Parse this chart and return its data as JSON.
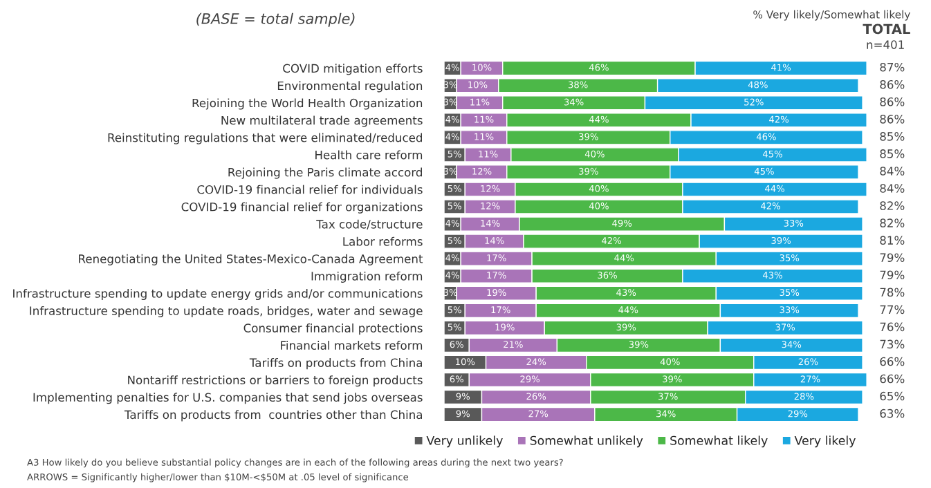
{
  "chart_data": {
    "type": "bar",
    "orientation": "horizontal",
    "stacked": true,
    "legend": "bottom right",
    "grid": false,
    "tick_labels": "y",
    "categories": [
      "COVID mitigation efforts",
      "Environmental regulation",
      "Rejoining the World Health Organization",
      "New multilateral trade agreements",
      "Reinstituting regulations that were eliminated/reduced",
      "Health care reform",
      "Rejoining the Paris climate accord",
      "COVID-19 financial relief for individuals",
      "COVID-19 financial relief for organizations",
      "Tax code/structure",
      "Labor reforms",
      "Renegotiating the United States-Mexico-Canada Agreement",
      "Immigration reform",
      "Infrastructure spending to update energy grids and/or communications",
      "Infrastructure spending to update roads, bridges, water and sewage",
      "Consumer financial protections",
      "Financial markets reform",
      "Tariffs on products from China",
      "Nontariff restrictions or barriers to foreign products",
      "Implementing penalties for U.S. companies that send jobs overseas",
      "Tariffs on products from  countries other than China"
    ],
    "series": [
      {
        "name": "Very unlikely",
        "color": "#595959",
        "values": [
          4,
          3,
          3,
          4,
          4,
          5,
          3,
          5,
          5,
          4,
          5,
          4,
          4,
          3,
          5,
          5,
          6,
          10,
          6,
          9,
          9
        ],
        "value_labels": [
          "4%",
          "3%",
          "3%",
          "4%",
          "4%",
          "5%",
          "3%",
          "5%",
          "5%",
          "4%",
          "5%",
          "4%",
          "4%",
          "3%",
          "5%",
          "5%",
          "6%",
          "10%",
          "6%",
          "9%",
          "9%"
        ]
      },
      {
        "name": "Somewhat unlikely",
        "color": "#a974b8",
        "values": [
          10,
          10,
          11,
          11,
          11,
          11,
          12,
          12,
          12,
          14,
          14,
          17,
          17,
          19,
          17,
          19,
          21,
          24,
          29,
          26,
          27
        ],
        "value_labels": [
          "10%",
          "10%",
          "11%",
          "11%",
          "11%",
          "11%",
          "12%",
          "12%",
          "12%",
          "14%",
          "14%",
          "17%",
          "17%",
          "19%",
          "17%",
          "19%",
          "21%",
          "24%",
          "29%",
          "26%",
          "27%"
        ]
      },
      {
        "name": "Somewhat likely",
        "color": "#4cb848",
        "values": [
          46,
          38,
          34,
          44,
          39,
          40,
          39,
          40,
          40,
          49,
          42,
          44,
          36,
          43,
          44,
          39,
          39,
          40,
          39,
          37,
          34
        ],
        "value_labels": [
          "46%",
          "38%",
          "34%",
          "44%",
          "39%",
          "40%",
          "39%",
          "40%",
          "40%",
          "49%",
          "42%",
          "44%",
          "36%",
          "43%",
          "44%",
          "39%",
          "39%",
          "40%",
          "39%",
          "37%",
          "34%"
        ]
      },
      {
        "name": "Very likely",
        "color": "#1ba8e0",
        "values": [
          41,
          48,
          52,
          42,
          46,
          45,
          45,
          44,
          42,
          33,
          39,
          35,
          43,
          35,
          33,
          37,
          34,
          26,
          27,
          28,
          29
        ],
        "value_labels": [
          "41%",
          "48%",
          "52%",
          "42%",
          "46%",
          "45%",
          "45%",
          "44%",
          "42%",
          "33%",
          "39%",
          "35%",
          "43%",
          "35%",
          "33%",
          "37%",
          "34%",
          "26%",
          "27%",
          "28%",
          "29%"
        ]
      }
    ],
    "annotations": [
      "(BASE = total sample)",
      "% Very likely/Somewhat likely",
      "TOTAL",
      "n=401",
      "87%",
      "86%",
      "86%",
      "86%",
      "85%",
      "85%",
      "84%",
      "84%",
      "82%",
      "82%",
      "81%",
      "79%",
      "79%",
      "78%",
      "77%",
      "76%",
      "73%",
      "66%",
      "66%",
      "65%",
      "63%",
      "A3 How likely do you believe substantial policy changes are in each of the following areas during the next two years?",
      "ARROWS = Significantly higher/lower than $10M-<$50M at .05 level of significance"
    ]
  }
}
